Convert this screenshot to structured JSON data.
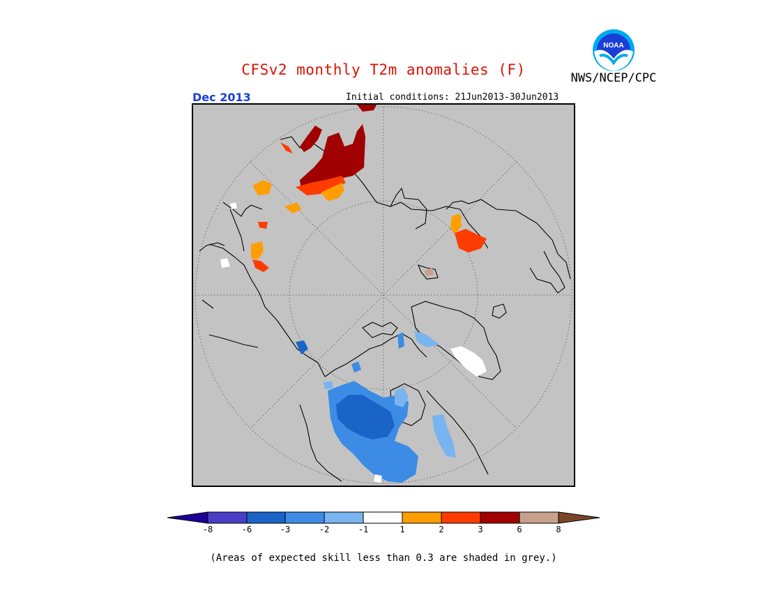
{
  "header": {
    "title": "CFSv2 monthly T2m anomalies (F)",
    "agency": "NWS/NCEP/CPC",
    "logo_text": "NOAA",
    "month": "Dec 2013",
    "initial_conditions": "Initial conditions: 21Jun2013-30Jun2013"
  },
  "colors": {
    "title": "#dd1100",
    "month": "#1a3fd8",
    "map_background": "#c3c3c3",
    "coastline": "#000000",
    "grid": "#666666"
  },
  "legend": {
    "ticks": [
      "-8",
      "-6",
      "-3",
      "-2",
      "-1",
      "1",
      "2",
      "3",
      "6",
      "8"
    ],
    "colors": {
      "lt_-8": "#1e0096",
      "-8_-6": "#4a3ec8",
      "-6_-3": "#1a64c8",
      "-3_-2": "#3c8ce6",
      "-2_-1": "#78b4f0",
      "-1_1": "#ffffff",
      "1_2": "#ff9e00",
      "2_3": "#ff3c00",
      "3_6": "#a00000",
      "6_8": "#c8a08c",
      "gt_8": "#7a4628"
    }
  },
  "footnote": "(Areas of expected skill less than 0.3 are shaded in grey.)"
}
